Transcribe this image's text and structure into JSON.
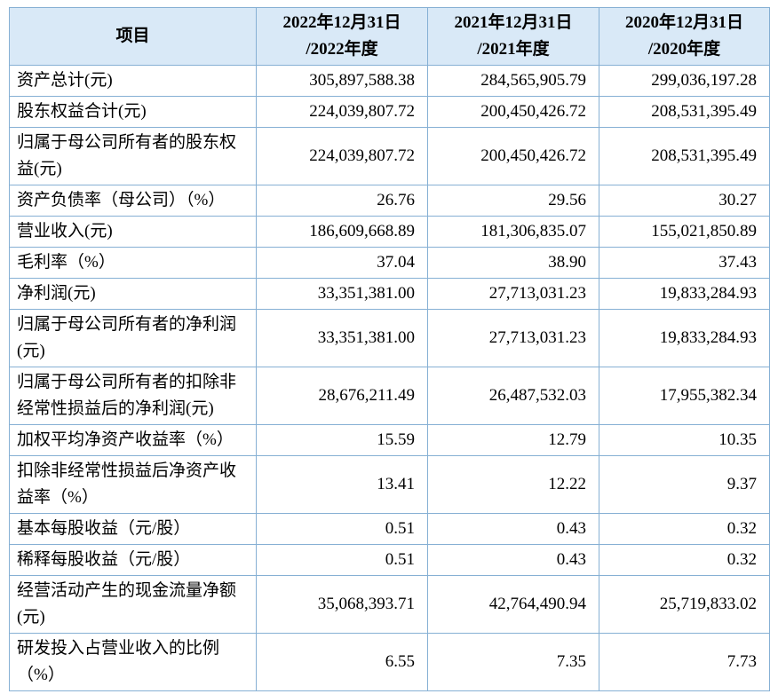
{
  "colors": {
    "border": "#86b0d4",
    "header_bg": "#d9e9f7",
    "text": "#000000"
  },
  "table": {
    "header": {
      "item_label": "项目",
      "periods": [
        {
          "line1": "2022年12月31日",
          "line2": "/2022年度"
        },
        {
          "line1": "2021年12月31日",
          "line2": "/2021年度"
        },
        {
          "line1": "2020年12月31日",
          "line2": "/2020年度"
        }
      ]
    },
    "rows": [
      {
        "label": "资产总计(元)",
        "values": [
          "305,897,588.38",
          "284,565,905.79",
          "299,036,197.28"
        ]
      },
      {
        "label": "股东权益合计(元)",
        "values": [
          "224,039,807.72",
          "200,450,426.72",
          "208,531,395.49"
        ]
      },
      {
        "label": "归属于母公司所有者的股东权益(元)",
        "values": [
          "224,039,807.72",
          "200,450,426.72",
          "208,531,395.49"
        ]
      },
      {
        "label": "资产负债率（母公司）（%）",
        "values": [
          "26.76",
          "29.56",
          "30.27"
        ]
      },
      {
        "label": "营业收入(元)",
        "values": [
          "186,609,668.89",
          "181,306,835.07",
          "155,021,850.89"
        ]
      },
      {
        "label": "毛利率（%）",
        "values": [
          "37.04",
          "38.90",
          "37.43"
        ]
      },
      {
        "label": "净利润(元)",
        "values": [
          "33,351,381.00",
          "27,713,031.23",
          "19,833,284.93"
        ]
      },
      {
        "label": "归属于母公司所有者的净利润(元)",
        "values": [
          "33,351,381.00",
          "27,713,031.23",
          "19,833,284.93"
        ]
      },
      {
        "label": "归属于母公司所有者的扣除非经常性损益后的净利润(元)",
        "values": [
          "28,676,211.49",
          "26,487,532.03",
          "17,955,382.34"
        ]
      },
      {
        "label": "加权平均净资产收益率（%）",
        "values": [
          "15.59",
          "12.79",
          "10.35"
        ]
      },
      {
        "label": "扣除非经常性损益后净资产收益率（%）",
        "values": [
          "13.41",
          "12.22",
          "9.37"
        ]
      },
      {
        "label": "基本每股收益（元/股）",
        "values": [
          "0.51",
          "0.43",
          "0.32"
        ]
      },
      {
        "label": "稀释每股收益（元/股）",
        "values": [
          "0.51",
          "0.43",
          "0.32"
        ]
      },
      {
        "label": "经营活动产生的现金流量净额(元)",
        "values": [
          "35,068,393.71",
          "42,764,490.94",
          "25,719,833.02"
        ]
      },
      {
        "label": "研发投入占营业收入的比例（%）",
        "values": [
          "6.55",
          "7.35",
          "7.73"
        ]
      }
    ]
  }
}
